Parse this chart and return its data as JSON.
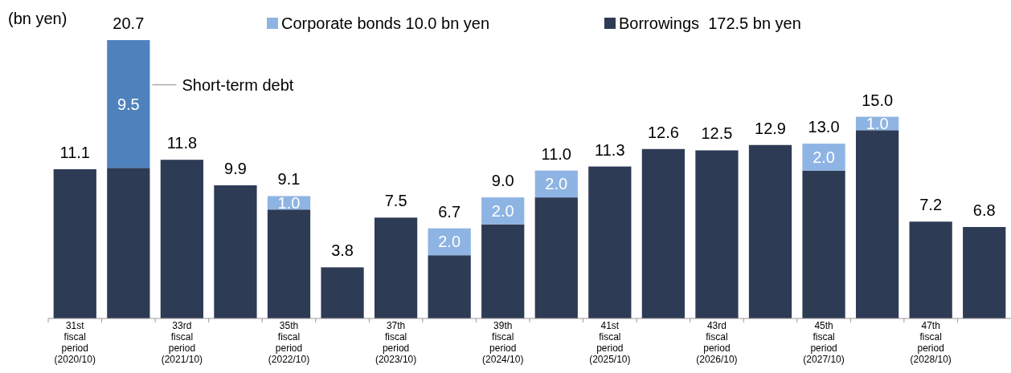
{
  "chart_data": {
    "type": "bar",
    "stacked": true,
    "ylabel": "(bn yen)",
    "legend": "top",
    "categories": [
      "31st\nfiscal\nperiod\n(2020/10)",
      null,
      "33rd\nfiscal\nperiod\n(2021/10)",
      null,
      "35th\nfiscal\nperiod\n(2022/10)",
      null,
      "37th\nfiscal\nperiod\n(2023/10)",
      null,
      "39th\nfiscal\nperiod\n(2024/10)",
      null,
      "41st\nfiscal\nperiod\n(2025/10)",
      null,
      "43rd\nfiscal\nperiod\n(2026/10)",
      null,
      "45th\nfiscal\nperiod\n(2027/10)",
      null,
      "47th\nfiscal\nperiod\n(2028/10)",
      null
    ],
    "series": [
      {
        "name": "Borrowings  172.5 bn yen",
        "color": "#2e3b55",
        "values": [
          11.1,
          11.2,
          11.8,
          9.9,
          8.1,
          3.8,
          7.5,
          4.7,
          7.0,
          9.0,
          11.3,
          12.6,
          12.5,
          12.9,
          11.0,
          14.0,
          7.2,
          6.8
        ]
      },
      {
        "name": "Corporate bonds 10.0 bn yen",
        "color": "#8eb4e3",
        "values": [
          null,
          null,
          null,
          null,
          1.0,
          null,
          null,
          2.0,
          2.0,
          2.0,
          null,
          null,
          null,
          null,
          2.0,
          1.0,
          null,
          null
        ],
        "value_labels": [
          null,
          null,
          null,
          null,
          "1.0",
          null,
          null,
          "2.0",
          "2.0",
          "2.0",
          null,
          null,
          null,
          null,
          "2.0",
          "1.0",
          null,
          null
        ]
      },
      {
        "name": "Short-term debt",
        "color": "#4f81bd",
        "values": [
          null,
          9.5,
          null,
          null,
          null,
          null,
          null,
          null,
          null,
          null,
          null,
          null,
          null,
          null,
          null,
          null,
          null,
          null
        ],
        "value_labels": [
          null,
          "9.5",
          null,
          null,
          null,
          null,
          null,
          null,
          null,
          null,
          null,
          null,
          null,
          null,
          null,
          null,
          null,
          null
        ]
      }
    ],
    "totals": [
      "11.1",
      "20.7",
      "11.8",
      "9.9",
      "9.1",
      "3.8",
      "7.5",
      "6.7",
      "9.0",
      "11.0",
      "11.3",
      "12.6",
      "12.5",
      "12.9",
      "13.0",
      "15.0",
      "7.2",
      "6.8"
    ]
  }
}
